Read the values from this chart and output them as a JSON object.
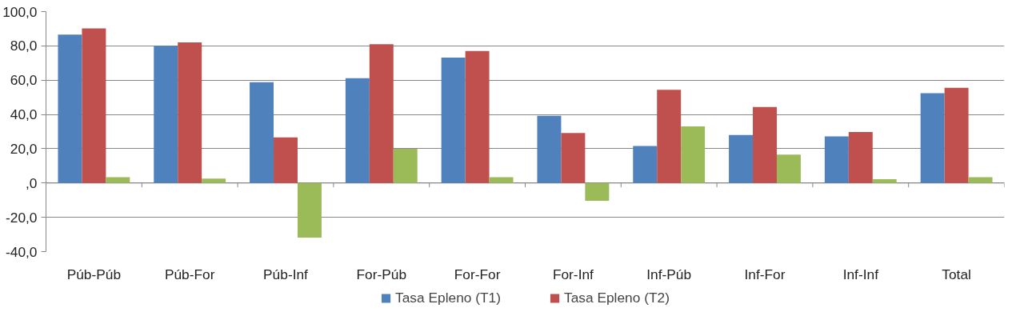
{
  "chart_data": {
    "type": "bar",
    "categories": [
      "Púb-Púb",
      "Púb-For",
      "Púb-Inf",
      "For-Púb",
      "For-For",
      "For-Inf",
      "Inf-Púb",
      "Inf-For",
      "Inf-Inf",
      "Total"
    ],
    "series": [
      {
        "name": "Tasa Epleno (T1)",
        "color": "#4f81bd",
        "values": [
          86.6,
          80.0,
          58.8,
          61.2,
          73.2,
          39.2,
          21.6,
          28.0,
          27.2,
          52.4
        ]
      },
      {
        "name": "Tasa Epleno (T2)",
        "color": "#c0504d",
        "values": [
          90.2,
          82.0,
          26.6,
          81.0,
          77.0,
          29.2,
          54.4,
          44.4,
          29.8,
          55.6
        ]
      },
      {
        "color": "#9bbb59",
        "values": [
          3.4,
          2.6,
          -31.8,
          20.0,
          3.4,
          -10.4,
          33.0,
          16.6,
          2.2,
          3.4
        ]
      }
    ],
    "ylim": [
      -40,
      100
    ],
    "yticks": [
      {
        "value": -40,
        "label": "-40,0"
      },
      {
        "value": -20,
        "label": "-20,0"
      },
      {
        "value": 0,
        "label": ",0"
      },
      {
        "value": 20,
        "label": "20,0"
      },
      {
        "value": 40,
        "label": "40,0"
      },
      {
        "value": 60,
        "label": "60,0"
      },
      {
        "value": 80,
        "label": "80,0"
      },
      {
        "value": 100,
        "label": "100,0"
      }
    ],
    "grid": "y",
    "legend": "bottom"
  }
}
